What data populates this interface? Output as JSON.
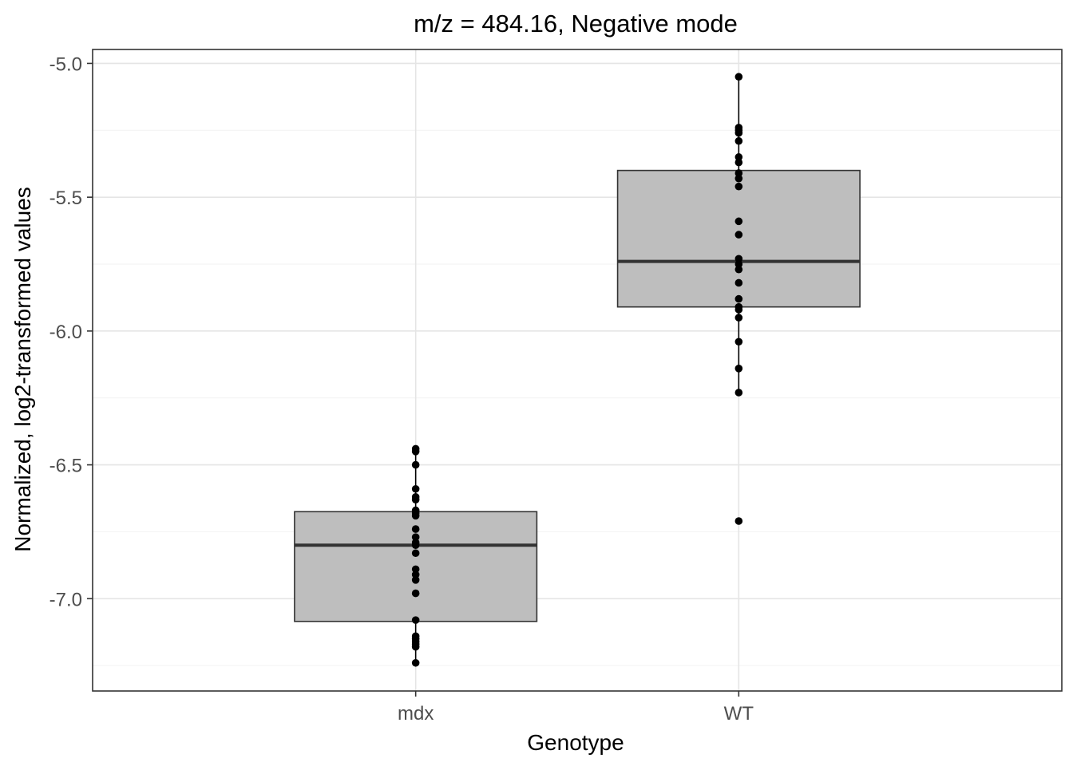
{
  "chart_data": {
    "type": "box",
    "title": "m/z = 484.16, Negative mode",
    "xlabel": "Genotype",
    "ylabel": "Normalized, log2-transformed values",
    "categories": [
      "mdx",
      "WT"
    ],
    "y_ticks": [
      -5.0,
      -5.5,
      -6.0,
      -6.5,
      -7.0
    ],
    "y_tick_labels": [
      "-5.0",
      "-5.5",
      "-6.0",
      "-6.5",
      "-7.0"
    ],
    "ylim": [
      -7.345,
      -4.948
    ],
    "grid": true,
    "legend": "none",
    "box_fill": "#bebebe",
    "box_stroke": "#333333",
    "point_color": "#000000",
    "boxes": [
      {
        "category": "mdx",
        "min": -7.24,
        "q1": -7.085,
        "median": -6.8,
        "q3": -6.675,
        "max": -6.44,
        "points": [
          -6.44,
          -6.45,
          -6.5,
          -6.59,
          -6.62,
          -6.63,
          -6.67,
          -6.68,
          -6.69,
          -6.74,
          -6.77,
          -6.79,
          -6.8,
          -6.83,
          -6.89,
          -6.91,
          -6.93,
          -6.98,
          -7.08,
          -7.14,
          -7.15,
          -7.16,
          -7.17,
          -7.18,
          -7.24
        ]
      },
      {
        "category": "WT",
        "min": -6.23,
        "q1": -5.91,
        "median": -5.74,
        "q3": -5.4,
        "max": -5.05,
        "points": [
          -5.05,
          -5.24,
          -5.25,
          -5.26,
          -5.29,
          -5.35,
          -5.37,
          -5.41,
          -5.43,
          -5.46,
          -5.59,
          -5.64,
          -5.73,
          -5.75,
          -5.77,
          -5.82,
          -5.88,
          -5.91,
          -5.92,
          -5.95,
          -6.04,
          -6.14,
          -6.23,
          -6.71
        ],
        "outliers": [
          -6.71
        ]
      }
    ]
  }
}
